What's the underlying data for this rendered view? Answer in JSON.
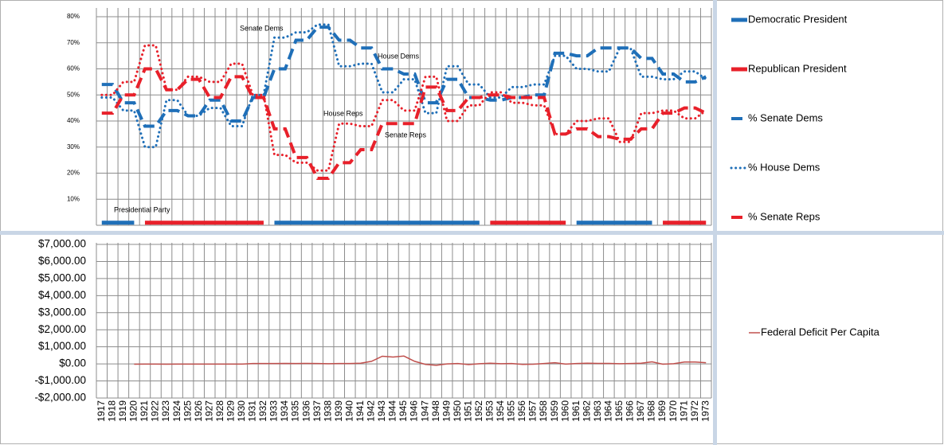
{
  "chart_data": [
    {
      "type": "line",
      "annotations": [
        "Senate Dems",
        "House Dems",
        "House Reps",
        "Senate Reps",
        "Presidential Party"
      ],
      "ylim": [
        0,
        80
      ],
      "yticks": [
        {
          "value": 10,
          "label": "10%"
        },
        {
          "value": 20,
          "label": "20%"
        },
        {
          "value": 30,
          "label": "30%"
        },
        {
          "value": 40,
          "label": "40%"
        },
        {
          "value": 50,
          "label": "50%"
        },
        {
          "value": 60,
          "label": "60%"
        },
        {
          "value": 70,
          "label": "70%"
        },
        {
          "value": 80,
          "label": "80%"
        }
      ],
      "grid": true,
      "series": [
        {
          "name": "Democratic President",
          "color": "#1f6fb8",
          "style": "solid",
          "values": [
            1,
            1,
            1,
            1,
            null,
            null,
            null,
            null,
            null,
            null,
            null,
            null,
            null,
            null,
            null,
            null,
            1,
            1,
            1,
            1,
            1,
            1,
            1,
            1,
            1,
            1,
            1,
            1,
            1,
            1,
            1,
            1,
            1,
            1,
            1,
            1,
            null,
            null,
            null,
            null,
            null,
            null,
            null,
            null,
            1,
            1,
            1,
            1,
            1,
            1,
            1,
            1,
            null,
            null,
            null,
            null,
            null
          ]
        },
        {
          "name": "Republican President",
          "color": "#e8202a",
          "style": "solid",
          "values": [
            null,
            null,
            null,
            null,
            1,
            1,
            1,
            1,
            1,
            1,
            1,
            1,
            1,
            1,
            1,
            1,
            null,
            null,
            null,
            null,
            null,
            null,
            null,
            null,
            null,
            null,
            null,
            null,
            null,
            null,
            null,
            null,
            null,
            null,
            null,
            null,
            1,
            1,
            1,
            1,
            1,
            1,
            1,
            1,
            null,
            null,
            null,
            null,
            null,
            null,
            null,
            null,
            1,
            1,
            1,
            1,
            1
          ]
        },
        {
          "name": "% Senate Dems",
          "color": "#1f6fb8",
          "style": "dashed",
          "values": [
            54,
            54,
            47,
            47,
            38,
            38,
            44,
            44,
            42,
            42,
            48,
            48,
            40,
            40,
            49,
            49,
            60,
            60,
            71,
            71,
            76,
            76,
            71,
            71,
            68,
            68,
            60,
            60,
            58,
            58,
            47,
            47,
            56,
            56,
            49,
            49,
            48,
            48,
            49,
            49,
            50,
            50,
            66,
            66,
            65,
            65,
            68,
            68,
            68,
            68,
            64,
            64,
            58,
            58,
            55,
            55,
            57
          ]
        },
        {
          "name": "% House Dems",
          "color": "#1f6fb8",
          "style": "dotted",
          "values": [
            49,
            49,
            44,
            44,
            30,
            30,
            48,
            48,
            42,
            42,
            45,
            45,
            38,
            38,
            50,
            50,
            72,
            72,
            74,
            74,
            77,
            77,
            61,
            61,
            62,
            62,
            51,
            51,
            56,
            56,
            43,
            43,
            61,
            61,
            54,
            54,
            49,
            49,
            53,
            53,
            54,
            54,
            65,
            65,
            60,
            60,
            59,
            59,
            68,
            68,
            57,
            57,
            56,
            56,
            59,
            59,
            56
          ]
        },
        {
          "name": "% Senate Reps",
          "color": "#e8202a",
          "style": "dashed",
          "values": [
            43,
            43,
            50,
            50,
            60,
            60,
            52,
            52,
            56,
            56,
            49,
            49,
            57,
            57,
            49,
            49,
            37,
            37,
            26,
            26,
            18,
            18,
            24,
            24,
            29,
            29,
            39,
            39,
            39,
            39,
            53,
            53,
            44,
            44,
            49,
            49,
            50,
            50,
            49,
            49,
            49,
            49,
            35,
            35,
            37,
            37,
            34,
            34,
            33,
            33,
            37,
            37,
            43,
            43,
            45,
            45,
            43
          ]
        },
        {
          "color": "#e8202a",
          "style": "dotted",
          "values": [
            50,
            50,
            55,
            55,
            69,
            69,
            52,
            52,
            57,
            57,
            55,
            55,
            62,
            62,
            50,
            50,
            27,
            27,
            24,
            24,
            21,
            21,
            39,
            39,
            38,
            38,
            48,
            48,
            44,
            44,
            57,
            57,
            40,
            40,
            46,
            46,
            51,
            51,
            47,
            47,
            46,
            46,
            35,
            35,
            40,
            40,
            41,
            41,
            32,
            32,
            43,
            43,
            44,
            44,
            41,
            41,
            44
          ]
        }
      ]
    },
    {
      "type": "line",
      "categories": [
        "1917",
        "1918",
        "1919",
        "1920",
        "1921",
        "1922",
        "1923",
        "1924",
        "1925",
        "1926",
        "1927",
        "1928",
        "1929",
        "1930",
        "1931",
        "1932",
        "1933",
        "1934",
        "1935",
        "1936",
        "1937",
        "1938",
        "1939",
        "1940",
        "1941",
        "1942",
        "1943",
        "1944",
        "1945",
        "1946",
        "1947",
        "1948",
        "1949",
        "1950",
        "1951",
        "1952",
        "1953",
        "1954",
        "1955",
        "1956",
        "1957",
        "1958",
        "1959",
        "1960",
        "1961",
        "1962",
        "1963",
        "1964",
        "1965",
        "1966",
        "1967",
        "1968",
        "1969",
        "1970",
        "1971",
        "1972",
        "1973"
      ],
      "ylim": [
        -2000,
        7000
      ],
      "yticks": [
        {
          "value": 7000,
          "label": "$7,000.00"
        },
        {
          "value": 6000,
          "label": "$6,000.00"
        },
        {
          "value": 5000,
          "label": "$5,000.00"
        },
        {
          "value": 4000,
          "label": "$4,000.00"
        },
        {
          "value": 3000,
          "label": "$3,000.00"
        },
        {
          "value": 2000,
          "label": "$2,000.00"
        },
        {
          "value": 1000,
          "label": "$1,000.00"
        },
        {
          "value": 0,
          "label": "$0.00"
        },
        {
          "value": -1000,
          "label": "-$1,000.00"
        },
        {
          "value": -2000,
          "label": "-$2,000.00"
        }
      ],
      "grid": true,
      "series": [
        {
          "name": "Federal Deficit Per Capita",
          "color": "#c0504d",
          "style": "thin",
          "values": [
            null,
            null,
            null,
            -20,
            -10,
            -10,
            -20,
            -10,
            -10,
            -10,
            -10,
            -10,
            -10,
            -10,
            20,
            20,
            20,
            30,
            20,
            30,
            20,
            10,
            20,
            20,
            40,
            150,
            450,
            400,
            460,
            150,
            -30,
            -80,
            0,
            20,
            -40,
            10,
            40,
            10,
            20,
            -30,
            -20,
            20,
            70,
            -10,
            20,
            40,
            30,
            30,
            10,
            20,
            40,
            120,
            -20,
            10,
            110,
            110,
            70
          ]
        }
      ]
    }
  ]
}
